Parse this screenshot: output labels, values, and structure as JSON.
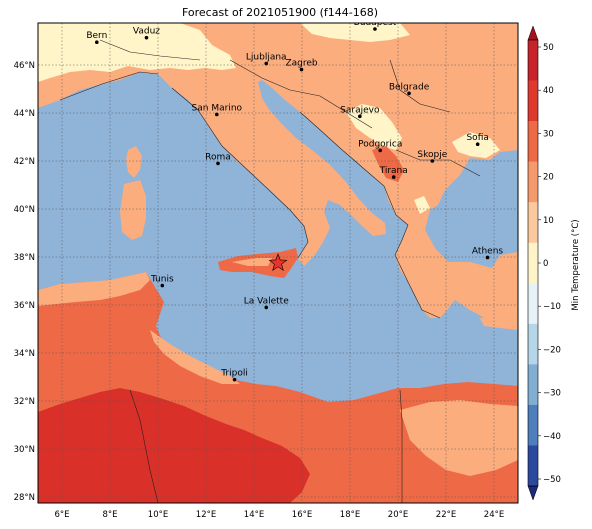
{
  "title": "Forecast of 2021051900 (f144-168)",
  "map": {
    "lon_range": [
      5,
      25
    ],
    "lat_range": [
      27.75,
      47.75
    ],
    "lon_ticks": [
      "6°E",
      "8°E",
      "10°E",
      "12°E",
      "14°E",
      "16°E",
      "18°E",
      "20°E",
      "22°E",
      "24°E"
    ],
    "lat_ticks": [
      "28°N",
      "30°N",
      "32°N",
      "34°N",
      "36°N",
      "38°N",
      "40°N",
      "42°N",
      "44°N",
      "46°N"
    ],
    "cities": [
      {
        "name": "Bern",
        "lon": 7.45,
        "lat": 46.95
      },
      {
        "name": "Vaduz",
        "lon": 9.52,
        "lat": 47.14
      },
      {
        "name": "Budapest",
        "lon": 19.04,
        "lat": 47.5
      },
      {
        "name": "Ljubljana",
        "lon": 14.51,
        "lat": 46.06
      },
      {
        "name": "Zagreb",
        "lon": 15.98,
        "lat": 45.81
      },
      {
        "name": "Belgrade",
        "lon": 20.46,
        "lat": 44.82
      },
      {
        "name": "San Marino",
        "lon": 12.45,
        "lat": 43.94
      },
      {
        "name": "Sarajevo",
        "lon": 18.41,
        "lat": 43.86
      },
      {
        "name": "Sofia",
        "lon": 23.32,
        "lat": 42.7
      },
      {
        "name": "Roma",
        "lon": 12.5,
        "lat": 41.9
      },
      {
        "name": "Podgorica",
        "lon": 19.26,
        "lat": 42.44
      },
      {
        "name": "Skopje",
        "lon": 21.43,
        "lat": 42.0
      },
      {
        "name": "Tirana",
        "lon": 19.82,
        "lat": 41.33
      },
      {
        "name": "Athens",
        "lon": 23.73,
        "lat": 37.98
      },
      {
        "name": "Tunis",
        "lon": 10.18,
        "lat": 36.81
      },
      {
        "name": "La Valette",
        "lon": 14.51,
        "lat": 35.9
      },
      {
        "name": "Tripoli",
        "lon": 13.19,
        "lat": 32.89
      }
    ],
    "marker": {
      "symbol": "star",
      "lon": 15.0,
      "lat": 37.75,
      "color": "#e8322d"
    }
  },
  "colorbar": {
    "label": "Min Temperature (°C)",
    "ticks": [
      "50",
      "40",
      "30",
      "20",
      "10",
      "0",
      "−10",
      "−20",
      "−30",
      "−40",
      "−50"
    ],
    "colors": [
      "#a5121f",
      "#c7232a",
      "#dd3a2d",
      "#ee6a47",
      "#f59a6d",
      "#fcc99f",
      "#fff3c8",
      "#e6f2f8",
      "#b5d5e9",
      "#82aed3",
      "#4f7ebc",
      "#2b4a9e",
      "#1d2a7a"
    ]
  },
  "palette": {
    "sea": "#90b3d8",
    "cold_land": "#fff5c8",
    "mild_land": "#fcad7e",
    "warm_land": "#ee6a46",
    "hot_land": "#d93129"
  }
}
